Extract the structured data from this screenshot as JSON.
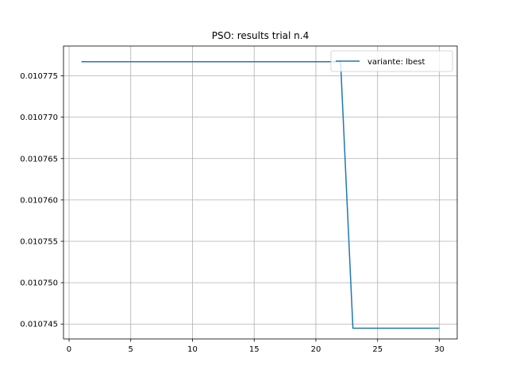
{
  "chart_data": {
    "type": "line",
    "title": "PSO: results trial n.4",
    "xlabel": "",
    "ylabel": "",
    "xlim": [
      -0.45,
      31.45
    ],
    "ylim": [
      0.0107432,
      0.0107786
    ],
    "grid": true,
    "legend_position": "top-right",
    "x_ticks": [
      0,
      5,
      10,
      15,
      20,
      25,
      30
    ],
    "x_tick_labels": [
      "0",
      "5",
      "10",
      "15",
      "20",
      "25",
      "30"
    ],
    "y_ticks": [
      0.010745,
      0.01075,
      0.010755,
      0.01076,
      0.010765,
      0.01077,
      0.010775
    ],
    "y_tick_labels": [
      "0.010745",
      "0.010750",
      "0.010755",
      "0.010760",
      "0.010765",
      "0.010770",
      "0.010775"
    ],
    "series": [
      {
        "name": "variante: lbest",
        "color": "#1f77b4",
        "x": [
          1,
          2,
          3,
          4,
          5,
          6,
          7,
          8,
          9,
          10,
          11,
          12,
          13,
          14,
          15,
          16,
          17,
          18,
          19,
          20,
          21,
          22,
          23,
          24,
          25,
          26,
          27,
          28,
          29,
          30
        ],
        "y": [
          0.0107767,
          0.0107767,
          0.0107767,
          0.0107767,
          0.0107767,
          0.0107767,
          0.0107767,
          0.0107767,
          0.0107767,
          0.0107767,
          0.0107767,
          0.0107767,
          0.0107767,
          0.0107767,
          0.0107767,
          0.0107767,
          0.0107767,
          0.0107767,
          0.0107767,
          0.0107767,
          0.0107767,
          0.0107767,
          0.0107445,
          0.0107445,
          0.0107445,
          0.0107445,
          0.0107445,
          0.0107445,
          0.0107445,
          0.0107445
        ]
      }
    ]
  }
}
